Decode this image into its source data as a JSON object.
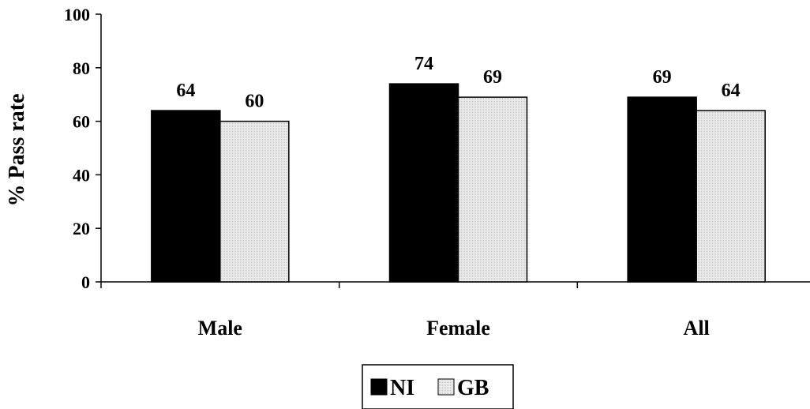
{
  "chart_data": {
    "type": "bar",
    "categories": [
      "Male",
      "Female",
      "All"
    ],
    "series": [
      {
        "name": "NI",
        "values": [
          64,
          74,
          69
        ],
        "color": "#000000"
      },
      {
        "name": "GB",
        "values": [
          60,
          69,
          64
        ],
        "color": "#e8e8e8"
      }
    ],
    "ylabel": "% Pass rate",
    "ylim": [
      0,
      100
    ],
    "yticks": [
      0,
      20,
      40,
      60,
      80,
      100
    ],
    "grid": false,
    "legend_position": "bottom-center"
  }
}
